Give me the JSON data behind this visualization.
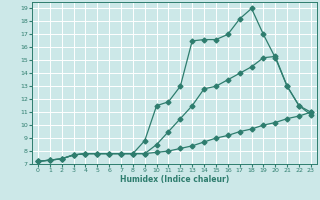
{
  "xlabel": "Humidex (Indice chaleur)",
  "bg_color": "#cce8e8",
  "grid_color": "#ffffff",
  "line_color": "#2e7d6e",
  "xlim": [
    -0.5,
    23.5
  ],
  "ylim": [
    7,
    19.5
  ],
  "xticks": [
    0,
    1,
    2,
    3,
    4,
    5,
    6,
    7,
    8,
    9,
    10,
    11,
    12,
    13,
    14,
    15,
    16,
    17,
    18,
    19,
    20,
    21,
    22,
    23
  ],
  "yticks": [
    7,
    8,
    9,
    10,
    11,
    12,
    13,
    14,
    15,
    16,
    17,
    18,
    19
  ],
  "series1_x": [
    0,
    1,
    2,
    3,
    4,
    5,
    6,
    7,
    8,
    9,
    10,
    11,
    12,
    13,
    14,
    15,
    16,
    17,
    18,
    19,
    20,
    21,
    22,
    23
  ],
  "series1_y": [
    7.2,
    7.3,
    7.4,
    7.7,
    7.8,
    7.8,
    7.8,
    7.8,
    7.8,
    8.8,
    11.5,
    11.8,
    13.0,
    16.5,
    16.6,
    16.6,
    17.0,
    18.2,
    19.0,
    17.0,
    15.2,
    13.0,
    11.5,
    10.8
  ],
  "series2_x": [
    0,
    1,
    2,
    3,
    4,
    5,
    6,
    7,
    8,
    9,
    10,
    11,
    12,
    13,
    14,
    15,
    16,
    17,
    18,
    19,
    20,
    21,
    22,
    23
  ],
  "series2_y": [
    7.2,
    7.3,
    7.4,
    7.7,
    7.8,
    7.8,
    7.8,
    7.8,
    7.8,
    7.8,
    8.5,
    9.5,
    10.5,
    11.5,
    12.8,
    13.0,
    13.5,
    14.0,
    14.5,
    15.2,
    15.3,
    13.0,
    11.5,
    11.0
  ],
  "series3_x": [
    0,
    1,
    2,
    3,
    4,
    5,
    6,
    7,
    8,
    9,
    10,
    11,
    12,
    13,
    14,
    15,
    16,
    17,
    18,
    19,
    20,
    21,
    22,
    23
  ],
  "series3_y": [
    7.2,
    7.3,
    7.4,
    7.7,
    7.8,
    7.8,
    7.8,
    7.8,
    7.8,
    7.8,
    7.9,
    8.0,
    8.2,
    8.4,
    8.7,
    9.0,
    9.2,
    9.5,
    9.7,
    10.0,
    10.2,
    10.5,
    10.7,
    11.0
  ]
}
